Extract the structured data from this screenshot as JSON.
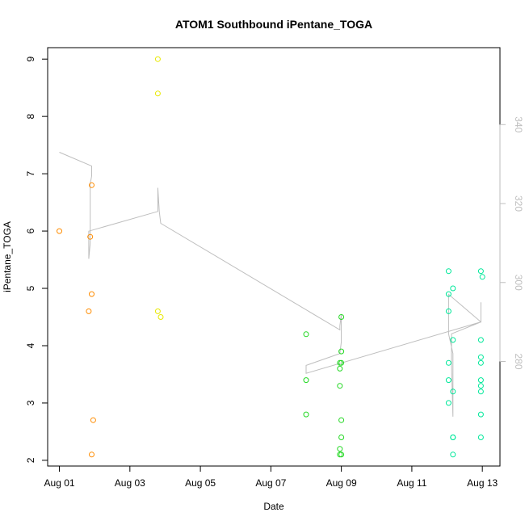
{
  "chart_data": {
    "type": "scatter",
    "title": "ATOM1 Southbound iPentane_TOGA",
    "xlabel": "Date",
    "ylabel": "iPentane_TOGA",
    "y2label": "",
    "xlim": [
      "2016-07-31T16:00",
      "2016-08-13T12:00"
    ],
    "ylim": [
      1.9,
      9.2
    ],
    "y2lim": [
      253.5,
      359.5
    ],
    "x_ticks": [
      {
        "x": "2016-08-01",
        "label": "Aug 01"
      },
      {
        "x": "2016-08-03",
        "label": "Aug 03"
      },
      {
        "x": "2016-08-05",
        "label": "Aug 05"
      },
      {
        "x": "2016-08-07",
        "label": "Aug 07"
      },
      {
        "x": "2016-08-09",
        "label": "Aug 09"
      },
      {
        "x": "2016-08-11",
        "label": "Aug 11"
      },
      {
        "x": "2016-08-13",
        "label": "Aug 13"
      }
    ],
    "y_ticks": [
      2,
      3,
      4,
      5,
      6,
      7,
      8,
      9
    ],
    "y2_ticks": [
      280,
      300,
      320,
      340
    ],
    "grid": false,
    "colors": {
      "orange": "#ff8c00",
      "yellow": "#e8e800",
      "green": "#22d822",
      "teal": "#00e89a",
      "trace": "#bebebe",
      "y2_axis": "#bebebe"
    },
    "series": [
      {
        "color": "orange",
        "points": [
          {
            "x": "2016-08-01T00:00",
            "y": 6.0
          },
          {
            "x": "2016-08-01T20:00",
            "y": 4.6
          },
          {
            "x": "2016-08-01T21:00",
            "y": 5.9
          },
          {
            "x": "2016-08-01T22:00",
            "y": 6.8
          },
          {
            "x": "2016-08-01T22:00",
            "y": 4.9
          },
          {
            "x": "2016-08-01T22:00",
            "y": 2.1
          },
          {
            "x": "2016-08-01T23:00",
            "y": 2.7
          }
        ]
      },
      {
        "color": "yellow",
        "points": [
          {
            "x": "2016-08-03T19:00",
            "y": 9.0
          },
          {
            "x": "2016-08-03T19:00",
            "y": 8.4
          },
          {
            "x": "2016-08-03T19:00",
            "y": 4.6
          },
          {
            "x": "2016-08-03T21:00",
            "y": 4.5
          }
        ]
      },
      {
        "color": "green",
        "points": [
          {
            "x": "2016-08-08T00:00",
            "y": 4.2
          },
          {
            "x": "2016-08-08T00:00",
            "y": 3.4
          },
          {
            "x": "2016-08-08T00:00",
            "y": 2.8
          },
          {
            "x": "2016-08-08T23:00",
            "y": 3.6
          },
          {
            "x": "2016-08-08T23:00",
            "y": 3.7
          },
          {
            "x": "2016-08-08T23:00",
            "y": 2.2
          },
          {
            "x": "2016-08-08T23:00",
            "y": 3.3
          },
          {
            "x": "2016-08-08T23:00",
            "y": 2.1
          },
          {
            "x": "2016-08-09T00:00",
            "y": 4.5
          },
          {
            "x": "2016-08-09T00:00",
            "y": 3.9
          },
          {
            "x": "2016-08-09T00:00",
            "y": 3.7
          },
          {
            "x": "2016-08-09T00:00",
            "y": 2.7
          },
          {
            "x": "2016-08-09T00:00",
            "y": 2.4
          },
          {
            "x": "2016-08-09T00:00",
            "y": 2.1
          }
        ]
      },
      {
        "color": "teal",
        "points": [
          {
            "x": "2016-08-12T01:00",
            "y": 5.3
          },
          {
            "x": "2016-08-12T01:00",
            "y": 4.9
          },
          {
            "x": "2016-08-12T01:00",
            "y": 4.6
          },
          {
            "x": "2016-08-12T01:00",
            "y": 3.7
          },
          {
            "x": "2016-08-12T01:00",
            "y": 3.4
          },
          {
            "x": "2016-08-12T01:00",
            "y": 3.0
          },
          {
            "x": "2016-08-12T04:00",
            "y": 5.0
          },
          {
            "x": "2016-08-12T04:00",
            "y": 4.1
          },
          {
            "x": "2016-08-12T04:00",
            "y": 3.2
          },
          {
            "x": "2016-08-12T04:00",
            "y": 2.4
          },
          {
            "x": "2016-08-12T04:00",
            "y": 2.4
          },
          {
            "x": "2016-08-12T04:00",
            "y": 2.1
          },
          {
            "x": "2016-08-12T23:00",
            "y": 5.3
          },
          {
            "x": "2016-08-12T23:00",
            "y": 4.1
          },
          {
            "x": "2016-08-12T23:00",
            "y": 3.8
          },
          {
            "x": "2016-08-12T23:00",
            "y": 3.7
          },
          {
            "x": "2016-08-12T23:00",
            "y": 3.4
          },
          {
            "x": "2016-08-12T23:00",
            "y": 3.3
          },
          {
            "x": "2016-08-12T23:00",
            "y": 3.2
          },
          {
            "x": "2016-08-12T23:00",
            "y": 2.8
          },
          {
            "x": "2016-08-12T23:00",
            "y": 2.4
          },
          {
            "x": "2016-08-13T00:00",
            "y": 5.2
          }
        ]
      }
    ],
    "trace_series": {
      "axis": "right",
      "color": "trace",
      "points": [
        {
          "x": "2016-08-01T00:00",
          "y": 333
        },
        {
          "x": "2016-08-01T22:00",
          "y": 329.5
        },
        {
          "x": "2016-08-01T22:00",
          "y": 327
        },
        {
          "x": "2016-08-01T21:00",
          "y": 325
        },
        {
          "x": "2016-08-01T21:00",
          "y": 310
        },
        {
          "x": "2016-08-01T20:00",
          "y": 306
        },
        {
          "x": "2016-08-01T20:00",
          "y": 313
        },
        {
          "x": "2016-08-03T19:00",
          "y": 318
        },
        {
          "x": "2016-08-03T19:00",
          "y": 324
        },
        {
          "x": "2016-08-03T20:00",
          "y": 318
        },
        {
          "x": "2016-08-03T21:00",
          "y": 315
        },
        {
          "x": "2016-08-08T23:00",
          "y": 288
        },
        {
          "x": "2016-08-08T23:00",
          "y": 289
        },
        {
          "x": "2016-08-09T00:00",
          "y": 292
        },
        {
          "x": "2016-08-09T00:00",
          "y": 285
        },
        {
          "x": "2016-08-08T23:00",
          "y": 282
        },
        {
          "x": "2016-08-08T00:00",
          "y": 279
        },
        {
          "x": "2016-08-08T00:00",
          "y": 277
        },
        {
          "x": "2016-08-12T23:00",
          "y": 290
        },
        {
          "x": "2016-08-12T23:00",
          "y": 295
        },
        {
          "x": "2016-08-12T23:00",
          "y": 290
        },
        {
          "x": "2016-08-12T01:00",
          "y": 297
        },
        {
          "x": "2016-08-12T01:00",
          "y": 287
        },
        {
          "x": "2016-08-12T04:00",
          "y": 282
        },
        {
          "x": "2016-08-12T04:00",
          "y": 266
        },
        {
          "x": "2016-08-12T03:00",
          "y": 279
        },
        {
          "x": "2016-08-12T03:00",
          "y": 287
        },
        {
          "x": "2016-08-12T23:00",
          "y": 290
        }
      ]
    }
  }
}
